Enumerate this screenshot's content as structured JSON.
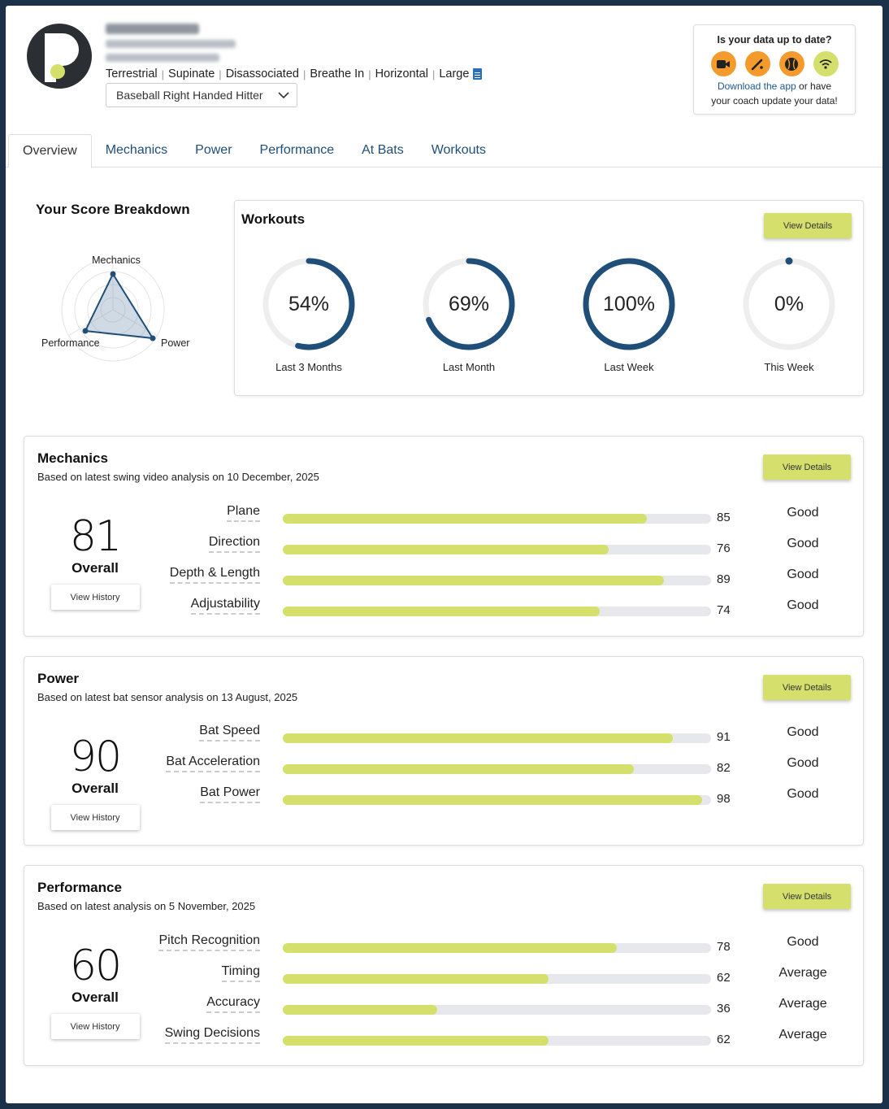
{
  "profile": {
    "tags": [
      "Terrestrial",
      "Supinate",
      "Disassociated",
      "Breathe In",
      "Horizontal",
      "Large"
    ],
    "tag_separator": "|",
    "selected_profile": "Baseball Right Handed Hitter"
  },
  "sync": {
    "title": "Is your data up to date?",
    "link_text": "Download the app",
    "text_after_link": " or have",
    "text_line2": "your coach update your data!",
    "icons": [
      "video-camera-icon",
      "bat-icon",
      "baseball-icon",
      "wifi-icon"
    ]
  },
  "tabs": [
    "Overview",
    "Mechanics",
    "Power",
    "Performance",
    "At Bats",
    "Workouts"
  ],
  "active_tab": "Overview",
  "score_breakdown": {
    "title": "Your Score Breakdown",
    "labels": {
      "top": "Mechanics",
      "left": "Performance",
      "right": "Power"
    }
  },
  "workouts": {
    "title": "Workouts",
    "button": "View Details",
    "rings": [
      {
        "value": 54,
        "text": "54%",
        "label": "Last 3 Months"
      },
      {
        "value": 69,
        "text": "69%",
        "label": "Last Month"
      },
      {
        "value": 100,
        "text": "100%",
        "label": "Last Week"
      },
      {
        "value": 0,
        "text": "0%",
        "label": "This Week"
      }
    ]
  },
  "sections": {
    "mechanics": {
      "title": "Mechanics",
      "subtitle": "Based on latest swing video analysis on 10 December, 2025",
      "score": "81",
      "overall_label": "Overall",
      "history_button": "View History",
      "details_button": "View Details",
      "metrics": [
        {
          "name": "Plane",
          "value": 85,
          "rating": "Good"
        },
        {
          "name": "Direction",
          "value": 76,
          "rating": "Good"
        },
        {
          "name": "Depth & Length",
          "value": 89,
          "rating": "Good"
        },
        {
          "name": "Adjustability",
          "value": 74,
          "rating": "Good"
        }
      ]
    },
    "power": {
      "title": "Power",
      "subtitle": "Based on latest bat sensor analysis on 13 August, 2025",
      "score": "90",
      "overall_label": "Overall",
      "history_button": "View History",
      "details_button": "View Details",
      "metrics": [
        {
          "name": "Bat Speed",
          "value": 91,
          "rating": "Good"
        },
        {
          "name": "Bat Acceleration",
          "value": 82,
          "rating": "Good"
        },
        {
          "name": "Bat Power",
          "value": 98,
          "rating": "Good"
        }
      ]
    },
    "performance": {
      "title": "Performance",
      "subtitle": "Based on latest analysis on 5 November, 2025",
      "score": "60",
      "overall_label": "Overall",
      "history_button": "View History",
      "details_button": "View Details",
      "metrics": [
        {
          "name": "Pitch Recognition",
          "value": 78,
          "rating": "Good"
        },
        {
          "name": "Timing",
          "value": 62,
          "rating": "Average"
        },
        {
          "name": "Accuracy",
          "value": 36,
          "rating": "Average"
        },
        {
          "name": "Swing Decisions",
          "value": 62,
          "rating": "Average"
        }
      ]
    }
  },
  "colors": {
    "accent": "#d5e06c",
    "ring": "#1f4e79",
    "ring_track": "#eeeeee",
    "link": "#1f5a8f",
    "orange": "#f59b2e",
    "page_bg": "#1b3049"
  }
}
